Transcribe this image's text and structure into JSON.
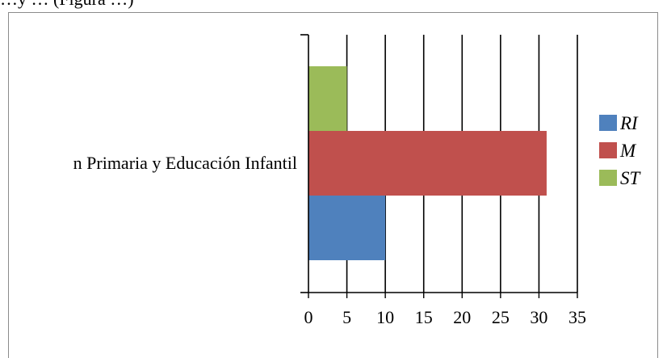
{
  "caption_fragment": "…y … (Figura …)",
  "chart_data": {
    "type": "bar",
    "orientation": "horizontal",
    "categories": [
      "n Primaria y Educación Infantil"
    ],
    "series": [
      {
        "name": "RI",
        "values": [
          10
        ],
        "color": "#4f81bd"
      },
      {
        "name": "M",
        "values": [
          31
        ],
        "color": "#c0504d"
      },
      {
        "name": "ST",
        "values": [
          5
        ],
        "color": "#9bbb59"
      }
    ],
    "xlim": [
      0,
      35
    ],
    "xticks": [
      0,
      5,
      10,
      15,
      20,
      25,
      30,
      35
    ],
    "grid": "vertical",
    "legend": "right",
    "title": "",
    "xlabel": "",
    "ylabel": ""
  }
}
